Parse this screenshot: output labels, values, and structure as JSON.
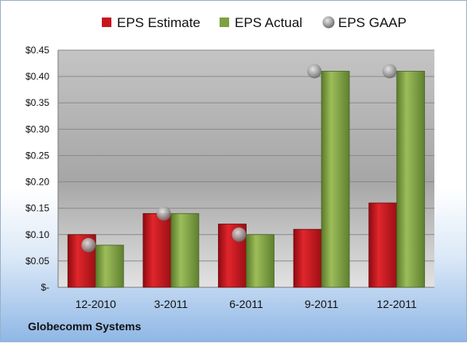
{
  "chart_data": {
    "type": "bar",
    "categories": [
      "12-2010",
      "3-2011",
      "6-2011",
      "9-2011",
      "12-2011"
    ],
    "series": [
      {
        "name": "EPS Estimate",
        "kind": "bar",
        "color": "#c8161d",
        "values": [
          0.1,
          0.14,
          0.12,
          0.11,
          0.16
        ]
      },
      {
        "name": "EPS Actual",
        "kind": "bar",
        "color": "#7ea040",
        "values": [
          0.08,
          0.14,
          0.1,
          0.41,
          0.41
        ]
      },
      {
        "name": "EPS GAAP",
        "kind": "marker",
        "color": "#a9a9a9",
        "values": [
          0.08,
          0.14,
          0.1,
          0.41,
          0.41
        ]
      }
    ],
    "y_ticks": [
      "$-",
      "$0.05",
      "$0.10",
      "$0.15",
      "$0.20",
      "$0.25",
      "$0.30",
      "$0.35",
      "$0.40",
      "$0.45"
    ],
    "ylim": [
      0,
      0.45
    ],
    "grid": true,
    "legend_position": "top"
  },
  "footer": {
    "company": "Globecomm Systems"
  }
}
